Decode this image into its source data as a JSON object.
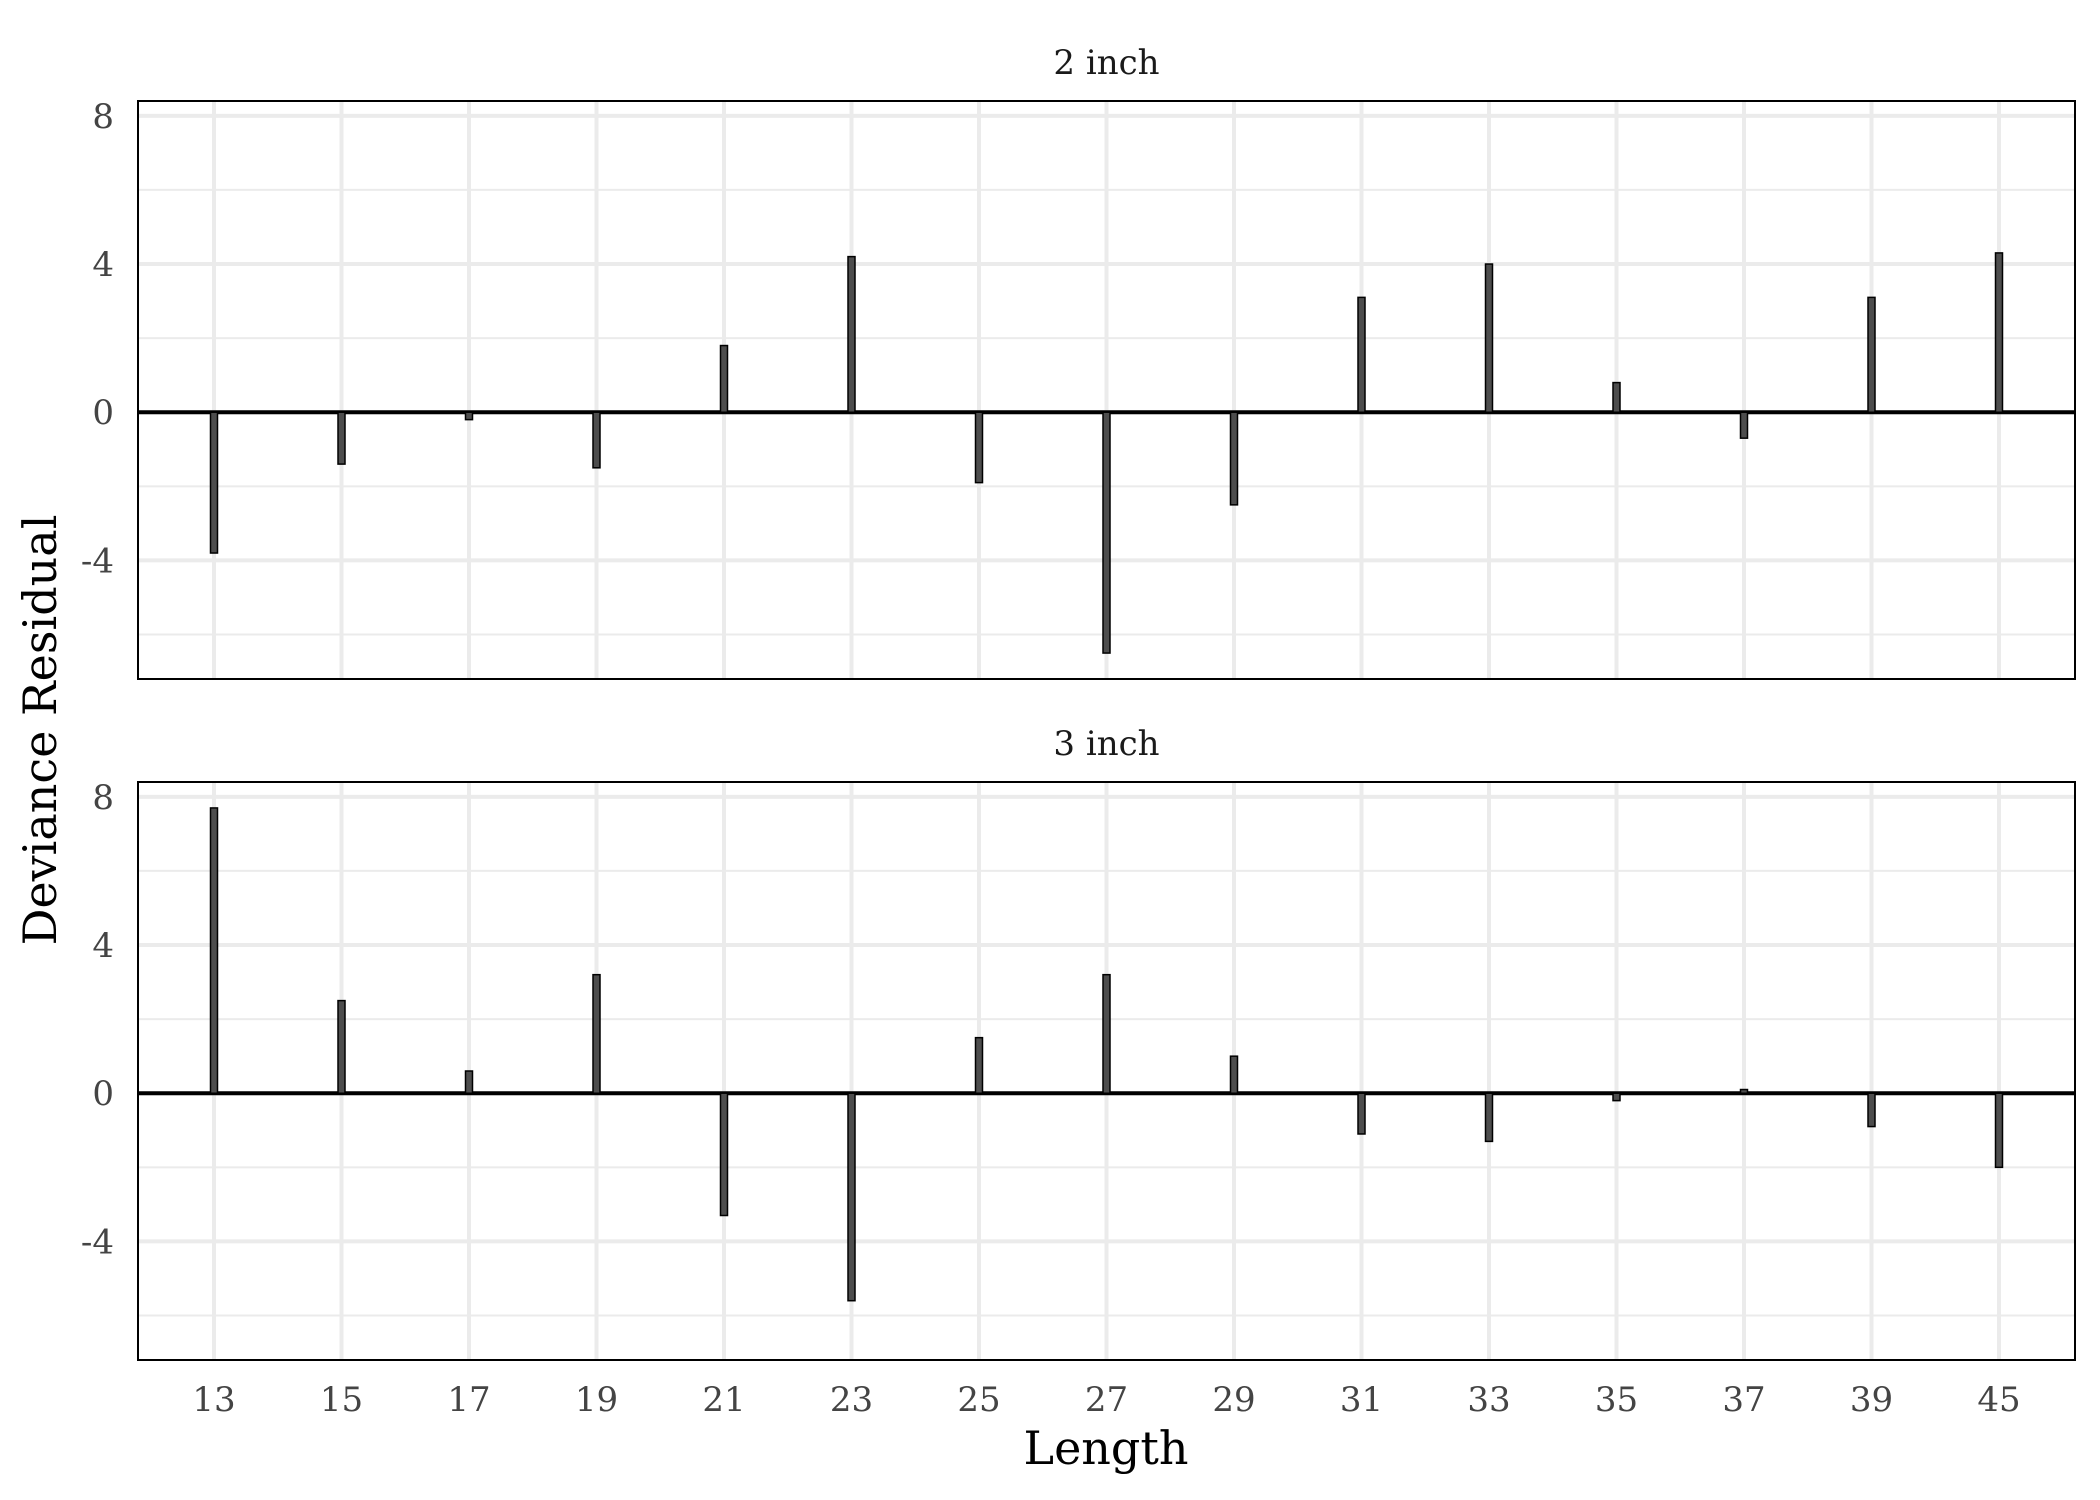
{
  "chart_data": {
    "type": "bar",
    "xlabel": "Length",
    "ylabel": "Deviance Residual",
    "categories": [
      "13",
      "15",
      "17",
      "19",
      "21",
      "23",
      "25",
      "27",
      "29",
      "31",
      "33",
      "35",
      "37",
      "39",
      "45"
    ],
    "ylim": [
      -7.2,
      8.4
    ],
    "y_ticks": [
      8,
      4,
      0,
      -4
    ],
    "y_tick_labels": [
      "8",
      "4",
      "0",
      "-4"
    ],
    "grid": true,
    "reference_line": 0,
    "colors": {
      "bar_fill": "#4d4d4d",
      "bar_outline": "#000000",
      "grid": "#ebebeb"
    },
    "panels": [
      {
        "title": "2 inch",
        "values": [
          -3.8,
          -1.4,
          -0.2,
          -1.5,
          1.8,
          4.2,
          -1.9,
          -6.5,
          -2.5,
          3.1,
          4.0,
          0.8,
          -0.7,
          3.1,
          4.3
        ]
      },
      {
        "title": "3 inch",
        "values": [
          7.7,
          2.5,
          0.6,
          3.2,
          -3.3,
          -5.6,
          1.5,
          3.2,
          1.0,
          -1.1,
          -1.3,
          -0.2,
          0.1,
          -0.9,
          -2.0
        ]
      }
    ]
  }
}
